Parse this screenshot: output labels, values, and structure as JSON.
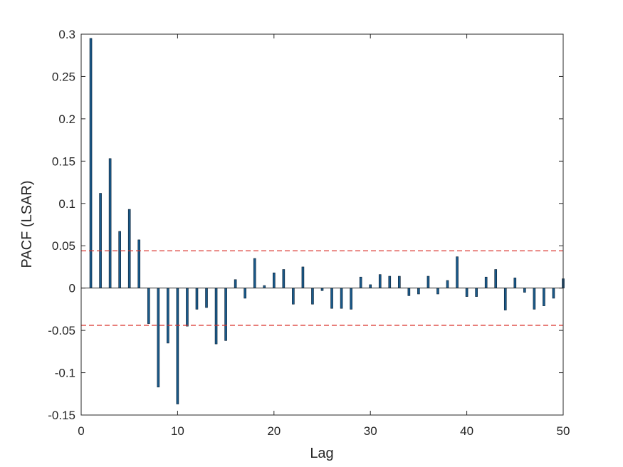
{
  "chart_data": {
    "type": "bar",
    "xlabel": "Lag",
    "ylabel": "PACF (LSAR)",
    "xlim": [
      0,
      50
    ],
    "ylim": [
      -0.15,
      0.3
    ],
    "xticks": [
      "0",
      "10",
      "20",
      "30",
      "40",
      "50"
    ],
    "yticks": [
      "-0.15",
      "-0.1",
      "-0.05",
      "0",
      "0.05",
      "0.1",
      "0.15",
      "0.2",
      "0.25",
      "0.3"
    ],
    "grid": false,
    "confidence_bound": 0.044,
    "bar_color": "#1a5a8a",
    "bound_color": "#d9322b",
    "x": [
      1,
      2,
      3,
      4,
      5,
      6,
      7,
      8,
      9,
      10,
      11,
      12,
      13,
      14,
      15,
      16,
      17,
      18,
      19,
      20,
      21,
      22,
      23,
      24,
      25,
      26,
      27,
      28,
      29,
      30,
      31,
      32,
      33,
      34,
      35,
      36,
      37,
      38,
      39,
      40,
      41,
      42,
      43,
      44,
      45,
      46,
      47,
      48,
      49,
      50
    ],
    "values": [
      0.295,
      0.112,
      0.153,
      0.067,
      0.093,
      0.057,
      -0.042,
      -0.117,
      -0.065,
      -0.137,
      -0.045,
      -0.025,
      -0.023,
      -0.066,
      -0.062,
      0.01,
      -0.012,
      0.035,
      0.003,
      0.018,
      0.022,
      -0.019,
      0.025,
      -0.019,
      -0.003,
      -0.024,
      -0.024,
      -0.025,
      0.013,
      0.004,
      0.016,
      0.014,
      0.014,
      -0.009,
      -0.007,
      0.014,
      -0.007,
      0.009,
      0.037,
      -0.01,
      -0.01,
      0.013,
      0.022,
      -0.026,
      0.012,
      -0.005,
      -0.025,
      -0.021,
      -0.012,
      0.011
    ]
  }
}
